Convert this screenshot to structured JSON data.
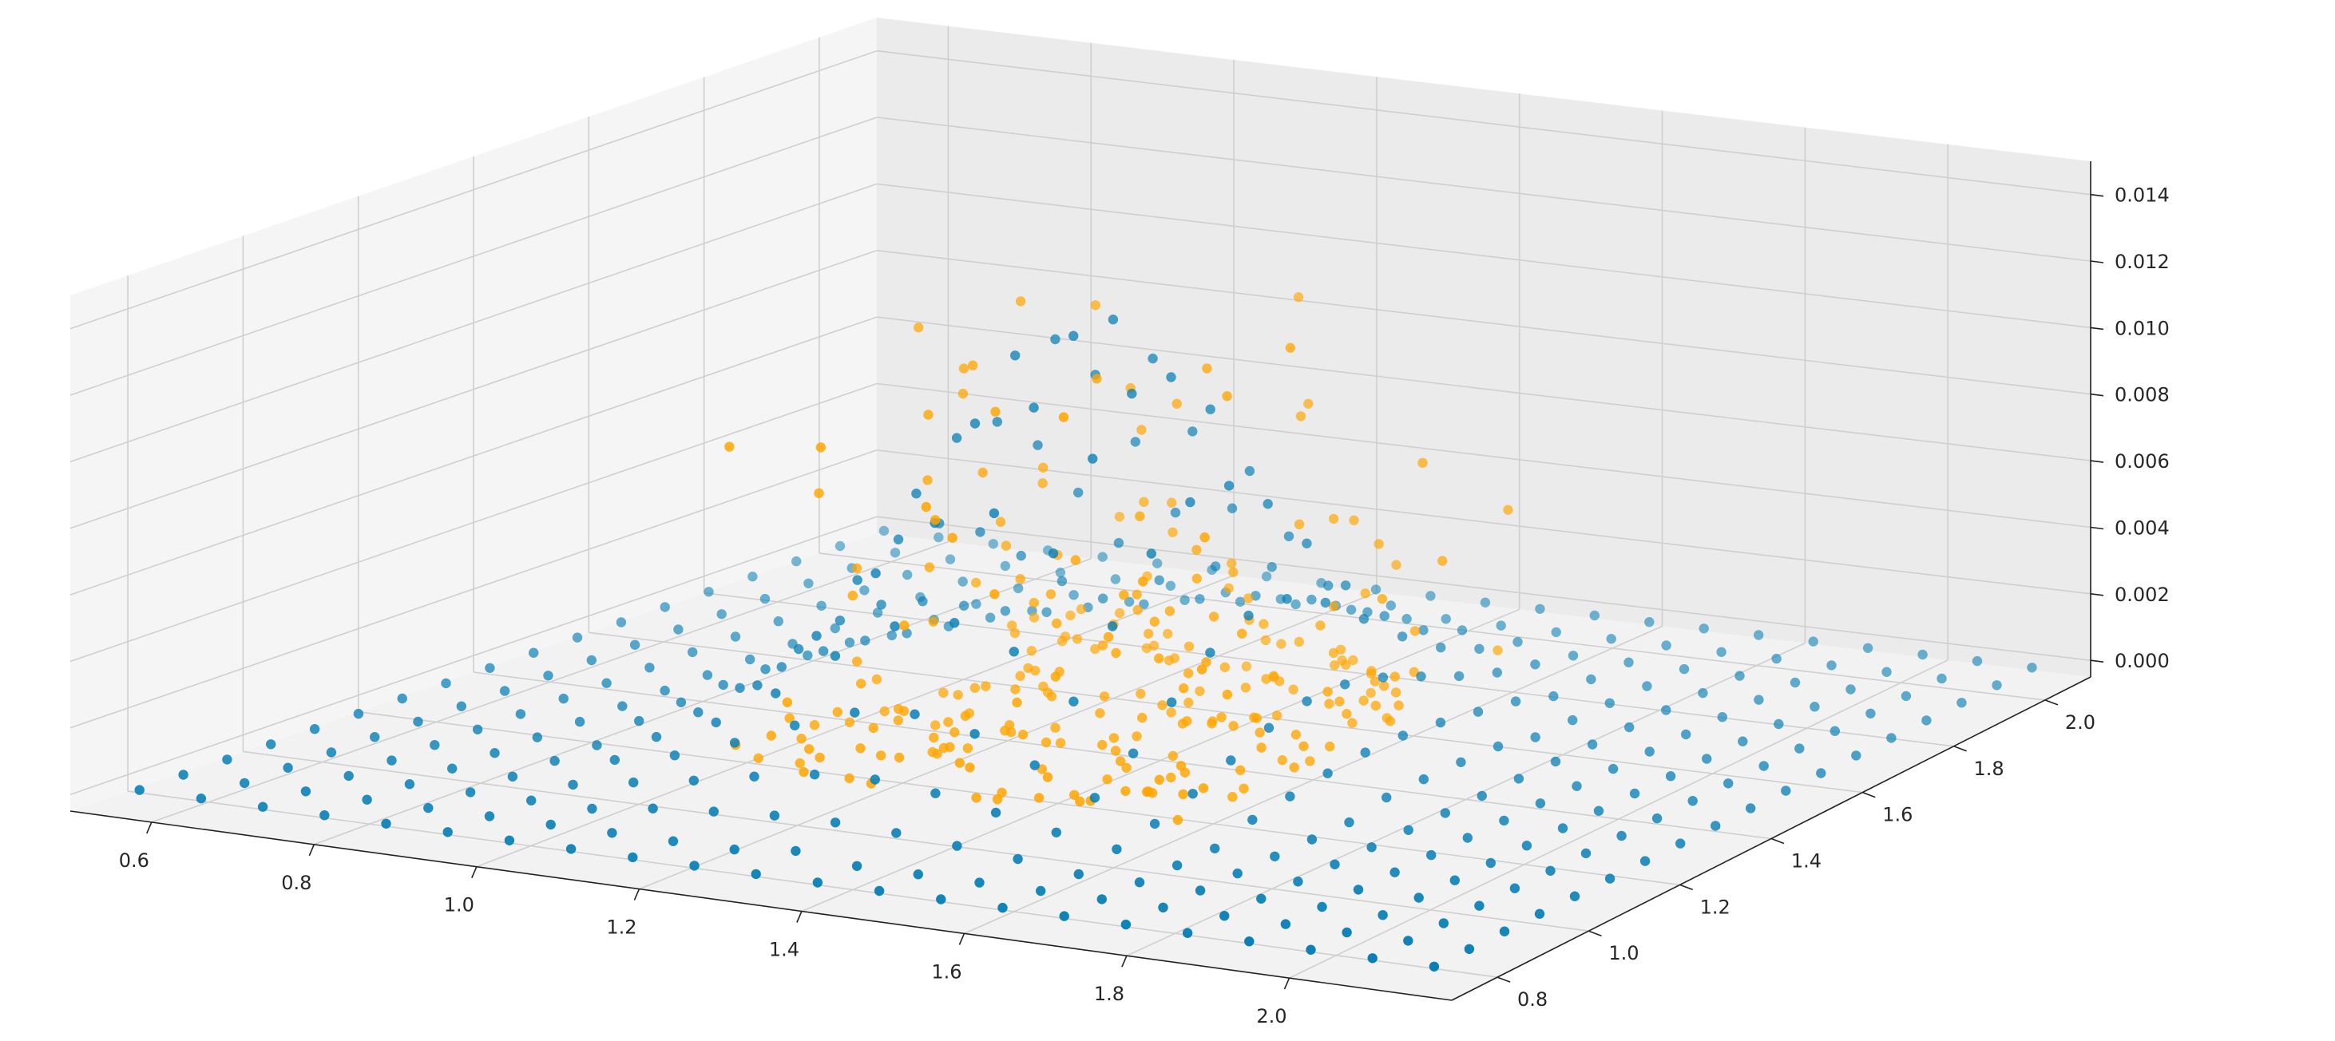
{
  "chart_data": {
    "type": "scatter",
    "projection": "3d",
    "title": "",
    "xlabel": "",
    "ylabel": "",
    "zlabel": "",
    "grid": true,
    "legend": "none",
    "xlim": [
      0.5,
      2.2
    ],
    "ylim": [
      0.7,
      2.1
    ],
    "zlim": [
      -0.0005,
      0.015
    ],
    "x_ticks": [
      "0.6",
      "0.8",
      "1.0",
      "1.2",
      "1.4",
      "1.6",
      "1.8",
      "2.0"
    ],
    "y_ticks": [
      "0.8",
      "1.0",
      "1.2",
      "1.4",
      "1.6",
      "1.8",
      "2.0"
    ],
    "z_ticks": [
      "0.000",
      "0.002",
      "0.004",
      "0.006",
      "0.008",
      "0.010",
      "0.012",
      "0.014"
    ],
    "series": [
      {
        "color": "#0a7fb5",
        "description": "regular grid over x 0.55–2.15 and y 0.75–2.05, z≈0 across the floor with a peak rising to about 0.0125 near x≈1.3, y≈1.4",
        "grid": {
          "x_start": 0.55,
          "x_end": 2.15,
          "nx": 22,
          "y_start": 0.75,
          "y_end": 2.05,
          "ny": 18
        },
        "peak": {
          "x": 1.3,
          "y": 1.4,
          "z": 0.0125,
          "sx": 0.17,
          "sy": 0.2
        }
      },
      {
        "color": "#ffa500",
        "description": "irregular cluster with x 1.05–1.65, y 1.05–1.75; z mostly 0–0.003, some up to about 0.0123",
        "x_range": [
          1.05,
          1.65
        ],
        "y_range": [
          1.05,
          1.75
        ],
        "z_range": [
          0,
          0.0123
        ],
        "count": 260
      }
    ]
  }
}
